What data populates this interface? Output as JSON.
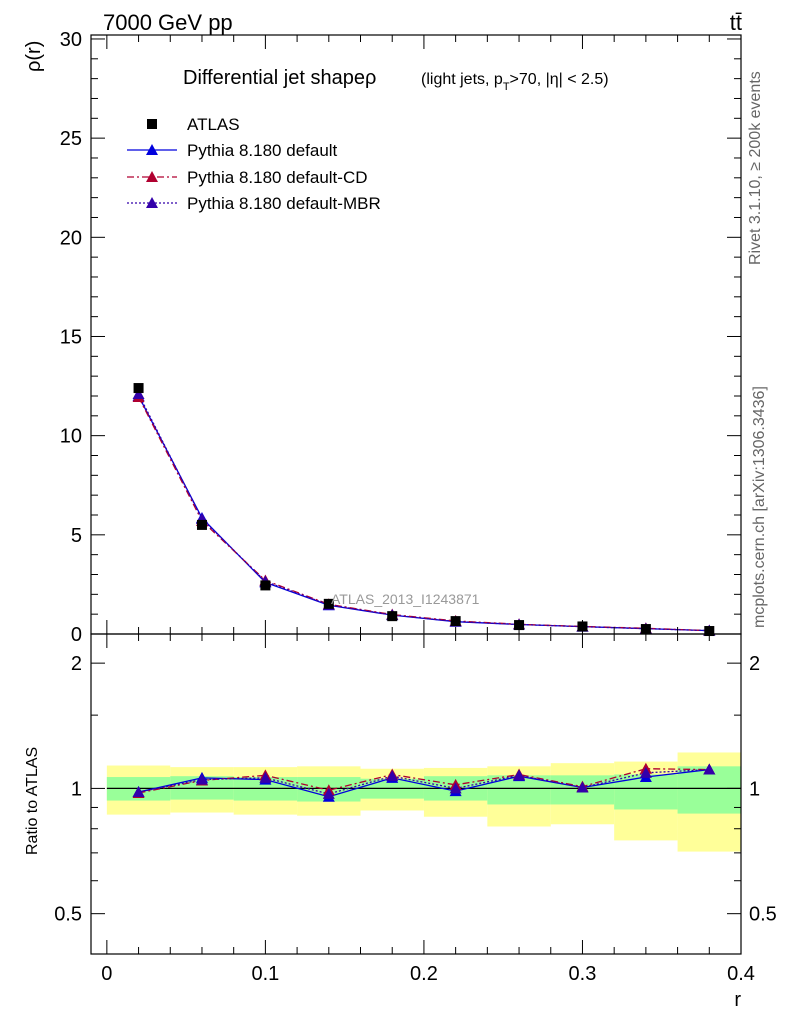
{
  "header": {
    "energy_label": "7000 GeV pp",
    "process_label": "tt̄"
  },
  "side_labels": {
    "rivet": "Rivet 3.1.10, ≥ 200k events",
    "mcplots": "mcplots.cern.ch [arXiv:1306.3436]"
  },
  "watermark": "ATLAS_2013_I1243871",
  "chart_data": [
    {
      "type": "scatter",
      "panel": "main",
      "title": "Differential jet shapeρ",
      "subtitle": "(light jets, p_T>70, |η| < 2.5)",
      "xlabel": "r",
      "ylabel": "ρ(r)",
      "xlim": [
        -0.01,
        0.4
      ],
      "ylim": [
        0,
        30.2
      ],
      "y_ticks": [
        0,
        5,
        10,
        15,
        20,
        25,
        30
      ],
      "y_tick_labels": [
        "0",
        "5",
        "10",
        "15",
        "20",
        "25",
        "30"
      ],
      "legend": [
        "ATLAS",
        "Pythia 8.180 default",
        "Pythia 8.180 default-CD",
        "Pythia 8.180 default-MBR"
      ],
      "legend_position": "top-left",
      "x": [
        0.02,
        0.06,
        0.1,
        0.14,
        0.18,
        0.22,
        0.26,
        0.3,
        0.34,
        0.38
      ],
      "series": [
        {
          "name": "ATLAS",
          "color": "#000000",
          "marker": "square",
          "values": [
            12.4,
            5.5,
            2.45,
            1.52,
            0.9,
            0.65,
            0.45,
            0.38,
            0.25,
            0.15
          ]
        },
        {
          "name": "Pythia 8.180 default",
          "color": "#0000dd",
          "marker": "triangle",
          "line": "solid",
          "values": [
            12.0,
            5.85,
            2.6,
            1.45,
            0.95,
            0.62,
            0.48,
            0.37,
            0.27,
            0.17
          ]
        },
        {
          "name": "Pythia 8.180 default-CD",
          "color": "#b00030",
          "marker": "triangle",
          "line": "dashdot",
          "values": [
            11.95,
            5.7,
            2.7,
            1.5,
            0.98,
            0.66,
            0.49,
            0.38,
            0.29,
            0.17
          ]
        },
        {
          "name": "Pythia 8.180 default-MBR",
          "color": "#3300aa",
          "marker": "triangle",
          "line": "dotted",
          "values": [
            12.1,
            5.8,
            2.65,
            1.47,
            0.96,
            0.63,
            0.48,
            0.37,
            0.27,
            0.17
          ]
        }
      ]
    },
    {
      "type": "line",
      "panel": "ratio",
      "xlabel": "r",
      "ylabel": "Ratio to ATLAS",
      "xlim": [
        -0.01,
        0.4
      ],
      "ylim": [
        0.4,
        2.35
      ],
      "y_ticks": [
        0.5,
        1,
        2
      ],
      "y_tick_labels": [
        "0.5",
        "1",
        "2"
      ],
      "x_ticks": [
        0,
        0.1,
        0.2,
        0.3,
        0.4
      ],
      "x_tick_labels": [
        "0",
        "0.1",
        "0.2",
        "0.3",
        "0.4"
      ],
      "x": [
        0.02,
        0.06,
        0.1,
        0.14,
        0.18,
        0.22,
        0.26,
        0.3,
        0.34,
        0.38
      ],
      "bin_edges": [
        0.0,
        0.04,
        0.08,
        0.12,
        0.16,
        0.2,
        0.24,
        0.28,
        0.32,
        0.36,
        0.4
      ],
      "uncertainty_bands": {
        "stat_green_low": [
          0.935,
          0.94,
          0.935,
          0.93,
          0.945,
          0.935,
          0.915,
          0.915,
          0.89,
          0.87
        ],
        "stat_green_high": [
          1.065,
          1.07,
          1.065,
          1.065,
          1.055,
          1.07,
          1.075,
          1.075,
          1.08,
          1.13
        ],
        "syst_yellow_low": [
          0.865,
          0.875,
          0.865,
          0.86,
          0.885,
          0.855,
          0.81,
          0.82,
          0.75,
          0.705
        ],
        "syst_yellow_high": [
          1.135,
          1.125,
          1.125,
          1.13,
          1.115,
          1.12,
          1.13,
          1.15,
          1.16,
          1.22
        ]
      },
      "reference_line": 1.0,
      "series": [
        {
          "name": "Pythia 8.180 default",
          "color": "#0000dd",
          "line": "solid",
          "values": [
            0.98,
            1.06,
            1.05,
            0.955,
            1.06,
            0.985,
            1.07,
            1.005,
            1.065,
            1.11
          ]
        },
        {
          "name": "Pythia 8.180 default-CD",
          "color": "#b00030",
          "line": "dashdot",
          "values": [
            0.975,
            1.045,
            1.075,
            0.99,
            1.08,
            1.02,
            1.08,
            1.01,
            1.115,
            1.11
          ]
        },
        {
          "name": "Pythia 8.180 default-MBR",
          "color": "#3300aa",
          "line": "dotted",
          "values": [
            0.98,
            1.05,
            1.06,
            0.97,
            1.07,
            1.0,
            1.075,
            1.005,
            1.09,
            1.11
          ]
        }
      ]
    }
  ]
}
